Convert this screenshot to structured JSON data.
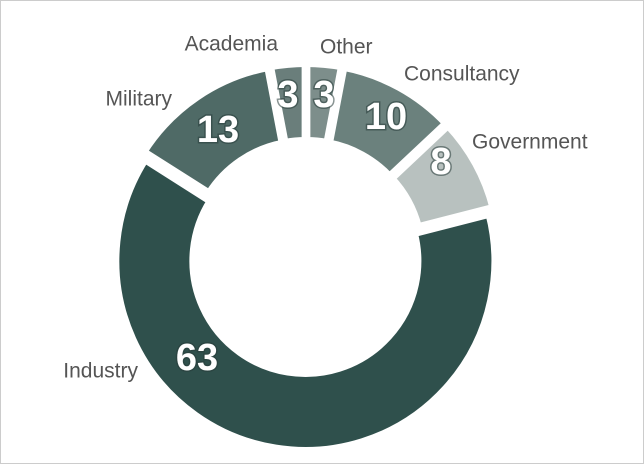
{
  "chart_data": {
    "type": "donut",
    "categories": [
      "Other",
      "Consultancy",
      "Government",
      "Industry",
      "Military",
      "Academia"
    ],
    "values": [
      3,
      10,
      8,
      63,
      13,
      3
    ],
    "colors": [
      "#7d8e8b",
      "#6b817d",
      "#b8c1bf",
      "#2f504c",
      "#4f6a66",
      "#6a7e7b"
    ]
  }
}
